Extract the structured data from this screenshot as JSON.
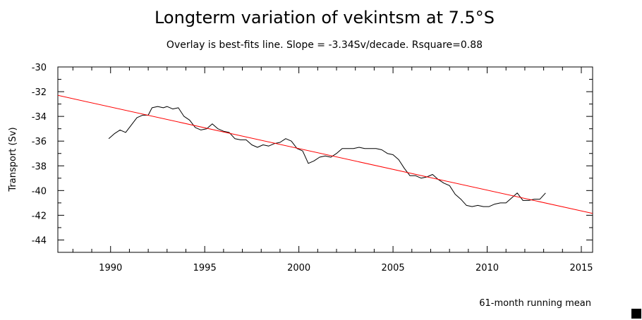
{
  "chart_data": {
    "type": "line",
    "title": "Longterm variation of vekintsm at 7.5°S",
    "subtitle": "Overlay is best-fits line. Slope = -3.34Sv/decade. Rsquare=0.88",
    "ylabel": "Transport (Sv)",
    "xlabel": "",
    "footnote": "61-month running mean",
    "xlim": [
      1987.2,
      2015.6
    ],
    "ylim": [
      -45,
      -30
    ],
    "x_ticks": [
      1990,
      1995,
      2000,
      2005,
      2010,
      2015
    ],
    "x_tick_labels": [
      "1990",
      "1995",
      "2000",
      "2005",
      "2010",
      "2015"
    ],
    "y_ticks": [
      -44,
      -42,
      -40,
      -38,
      -36,
      -34,
      -32,
      -30
    ],
    "y_tick_labels": [
      "-44",
      "-42",
      "-40",
      "-38",
      "-36",
      "-34",
      "-32",
      "-30"
    ],
    "series": [
      {
        "name": "61-month running mean",
        "color": "#000000",
        "x": [
          1989.9,
          1990.2,
          1990.5,
          1990.8,
          1991.1,
          1991.4,
          1991.7,
          1992.0,
          1992.2,
          1992.5,
          1992.8,
          1993.0,
          1993.3,
          1993.6,
          1993.9,
          1994.2,
          1994.5,
          1994.8,
          1995.1,
          1995.4,
          1995.7,
          1996.0,
          1996.3,
          1996.6,
          1996.9,
          1997.2,
          1997.5,
          1997.8,
          1998.1,
          1998.4,
          1998.7,
          1999.0,
          1999.3,
          1999.6,
          1999.9,
          2000.2,
          2000.5,
          2000.8,
          2001.1,
          2001.4,
          2001.7,
          2002.0,
          2002.3,
          2002.6,
          2002.9,
          2003.2,
          2003.5,
          2003.8,
          2004.1,
          2004.4,
          2004.7,
          2005.0,
          2005.3,
          2005.6,
          2005.9,
          2006.2,
          2006.5,
          2006.8,
          2007.1,
          2007.4,
          2007.7,
          2008.0,
          2008.3,
          2008.6,
          2008.9,
          2009.2,
          2009.5,
          2009.8,
          2010.1,
          2010.4,
          2010.7,
          2011.0,
          2011.3,
          2011.6,
          2011.9,
          2012.2,
          2012.5,
          2012.8,
          2013.1
        ],
        "y": [
          -35.8,
          -35.4,
          -35.1,
          -35.3,
          -34.7,
          -34.1,
          -33.9,
          -33.9,
          -33.3,
          -33.2,
          -33.3,
          -33.2,
          -33.4,
          -33.3,
          -34.0,
          -34.3,
          -34.9,
          -35.1,
          -35.0,
          -34.6,
          -35.0,
          -35.2,
          -35.3,
          -35.8,
          -35.9,
          -35.9,
          -36.3,
          -36.5,
          -36.3,
          -36.4,
          -36.2,
          -36.1,
          -35.8,
          -36.0,
          -36.6,
          -36.8,
          -37.8,
          -37.6,
          -37.3,
          -37.2,
          -37.3,
          -37.0,
          -36.6,
          -36.6,
          -36.6,
          -36.5,
          -36.6,
          -36.6,
          -36.6,
          -36.7,
          -37.0,
          -37.1,
          -37.5,
          -38.2,
          -38.8,
          -38.8,
          -39.0,
          -38.9,
          -38.7,
          -39.1,
          -39.4,
          -39.6,
          -40.3,
          -40.7,
          -41.2,
          -41.3,
          -41.2,
          -41.3,
          -41.3,
          -41.1,
          -41.0,
          -41.0,
          -40.6,
          -40.2,
          -40.8,
          -40.8,
          -40.7,
          -40.7,
          -40.2
        ]
      },
      {
        "name": "best-fit line",
        "color": "#ff0000",
        "x": [
          1987.2,
          2015.6
        ],
        "y": [
          -32.3,
          -41.85
        ]
      }
    ]
  },
  "corner_marker": "black-square"
}
